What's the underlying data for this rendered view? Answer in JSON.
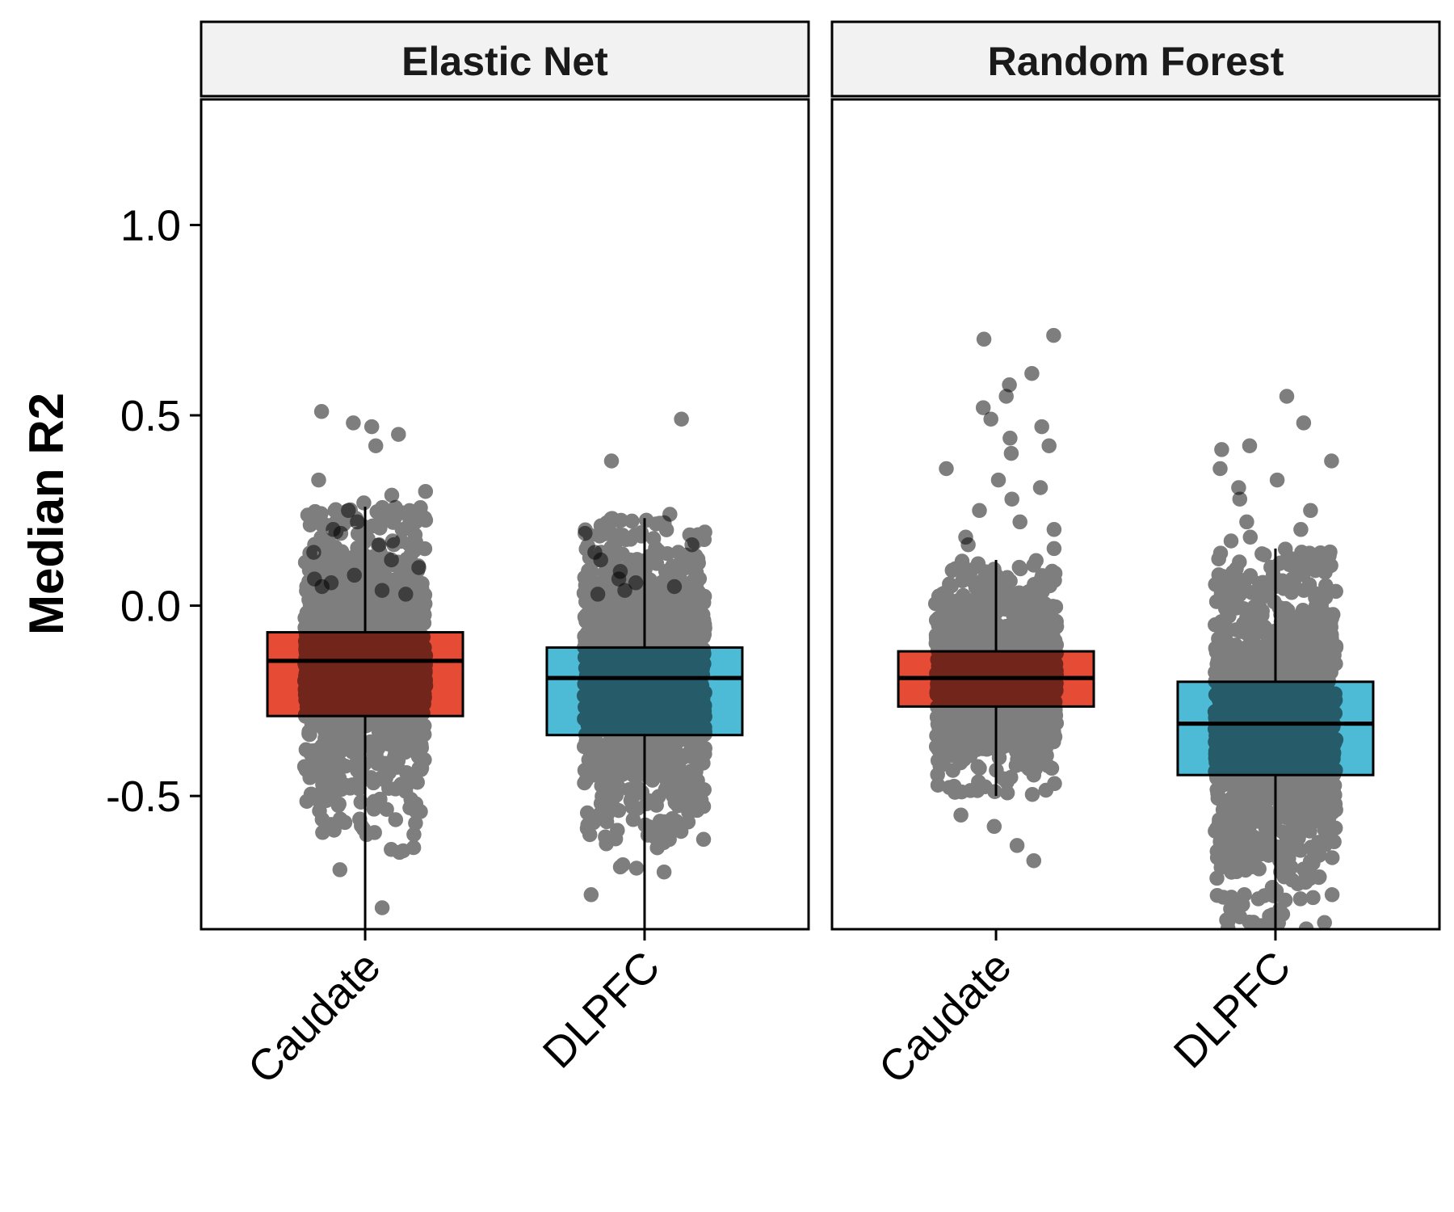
{
  "chart_data": {
    "type": "boxplot",
    "ylabel": "Median R2",
    "ylim": [
      -0.85,
      1.33
    ],
    "y_ticks": [
      {
        "value": 1.0,
        "label": "1.0"
      },
      {
        "value": 0.5,
        "label": "0.5"
      },
      {
        "value": 0.0,
        "label": "0.0"
      },
      {
        "value": -0.5,
        "label": "-0.5"
      }
    ],
    "categories": [
      "Caudate",
      "DLPFC"
    ],
    "colors": {
      "Caudate": "#E64B35",
      "DLPFC": "#4DBBD5"
    },
    "point_color": "#000000",
    "point_alpha": 0.5,
    "facets": [
      {
        "title": "Elastic Net",
        "groups": [
          {
            "category": "Caudate",
            "q1": -0.29,
            "median": -0.145,
            "q3": -0.07,
            "whisker_low": -0.85,
            "whisker_high": 0.26,
            "outliers": [
              0.51,
              0.48,
              0.47,
              0.45,
              0.42,
              0.33,
              0.3,
              0.29,
              0.27,
              0.25,
              0.22,
              0.2,
              0.19,
              0.17,
              0.16,
              0.14,
              0.12,
              0.1,
              0.08,
              0.07,
              0.06,
              0.05,
              0.04,
              0.03
            ]
          },
          {
            "category": "DLPFC",
            "q1": -0.34,
            "median": -0.19,
            "q3": -0.11,
            "whisker_low": -0.85,
            "whisker_high": 0.23,
            "outliers": [
              0.49,
              0.38,
              0.24,
              0.19,
              0.16,
              0.14,
              0.12,
              0.09,
              0.07,
              0.06,
              0.05,
              0.04,
              0.03
            ]
          }
        ]
      },
      {
        "title": "Random Forest",
        "groups": [
          {
            "category": "Caudate",
            "q1": -0.265,
            "median": -0.19,
            "q3": -0.12,
            "whisker_low": -0.5,
            "whisker_high": 0.12,
            "outliers": [
              0.71,
              0.7,
              0.61,
              0.58,
              0.55,
              0.52,
              0.49,
              0.47,
              0.44,
              0.42,
              0.4,
              0.36,
              0.33,
              0.31,
              0.28,
              0.25,
              0.22,
              0.2,
              0.18,
              0.16,
              0.15,
              -0.55,
              -0.58,
              -0.63,
              -0.67
            ]
          },
          {
            "category": "DLPFC",
            "q1": -0.445,
            "median": -0.31,
            "q3": -0.2,
            "whisker_low": -0.85,
            "whisker_high": 0.15,
            "outliers": [
              0.55,
              0.48,
              0.42,
              0.41,
              0.38,
              0.36,
              0.33,
              0.31,
              0.28,
              0.25,
              0.22,
              0.2,
              0.18,
              0.17
            ]
          }
        ]
      }
    ]
  }
}
